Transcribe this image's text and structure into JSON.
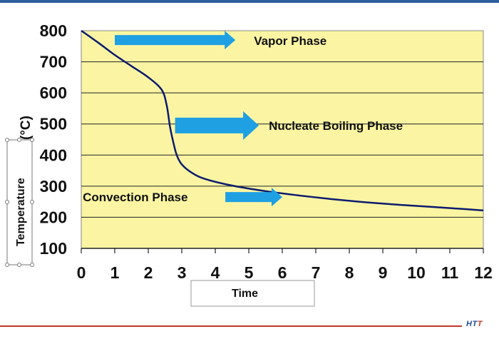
{
  "chart_data": {
    "type": "line",
    "xlabel": "Time",
    "ylabel": "Temperature",
    "yunit": "(°C)",
    "xlim": [
      0,
      12
    ],
    "ylim": [
      100,
      800
    ],
    "x_ticks": [
      "0",
      "1",
      "2",
      "3",
      "4",
      "5",
      "6",
      "7",
      "8",
      "9",
      "10",
      "11",
      "12"
    ],
    "y_ticks": [
      "800",
      "700",
      "600",
      "500",
      "400",
      "300",
      "200",
      "100"
    ],
    "grid": "horizontal",
    "background": "#fbf5a3",
    "line_color": "#0d1b6e",
    "arrow_color": "#1ea0e3",
    "series": [
      {
        "x": [
          0,
          0.5,
          1,
          1.5,
          2,
          2.4,
          2.55,
          2.65,
          2.75,
          2.85,
          3.0,
          3.3,
          3.7,
          4.5,
          5.5,
          6.5,
          7.5,
          8.5,
          9.5,
          10.5,
          11.5,
          12
        ],
        "y": [
          800,
          762,
          722,
          686,
          650,
          610,
          560,
          490,
          440,
          400,
          370,
          343,
          323,
          302,
          284,
          270,
          258,
          248,
          240,
          233,
          226,
          222
        ]
      }
    ],
    "annotations": [
      {
        "text": "Vapor Phase",
        "arrow_from": [
          1,
          770
        ],
        "arrow_to": [
          4.6,
          770
        ]
      },
      {
        "text": "Nucleate Boiling Phase",
        "arrow_from": [
          2.8,
          495
        ],
        "arrow_to": [
          5.3,
          495
        ]
      },
      {
        "text": "Convection Phase",
        "arrow_from": [
          4.3,
          265
        ],
        "arrow_to": [
          6.0,
          265
        ]
      }
    ]
  }
}
